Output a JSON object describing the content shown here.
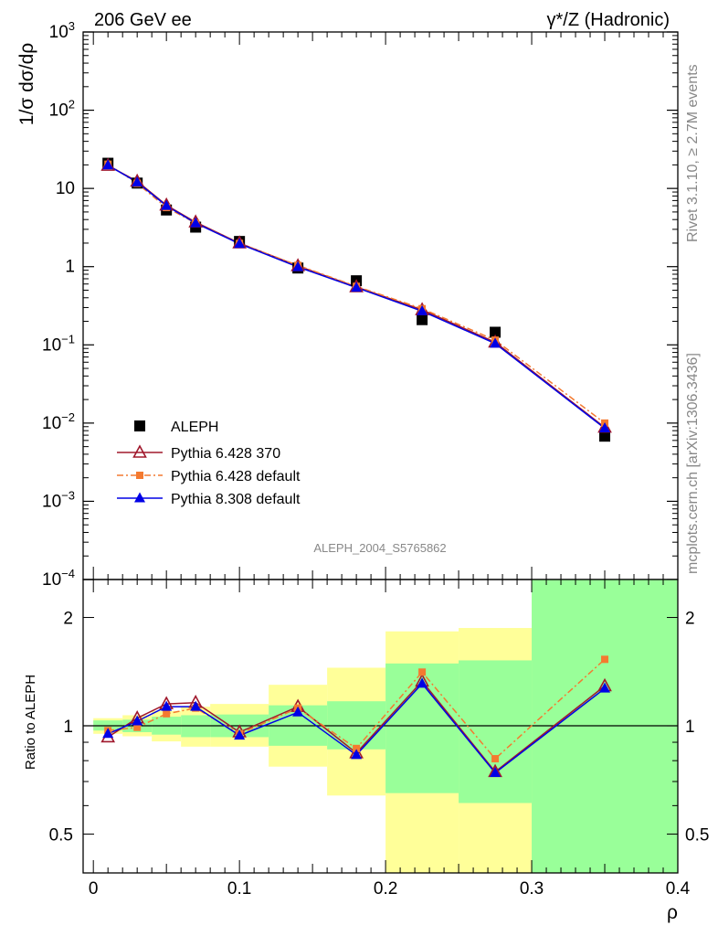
{
  "header": {
    "left": "206 GeV ee",
    "right": "γ*/Z (Hadronic)"
  },
  "side_labels": {
    "rivet": "Rivet 3.1.10, ≥ 2.7M events",
    "mcplots": "mcplots.cern.ch [arXiv:1306.3436]"
  },
  "watermark": "ALEPH_2004_S5765862",
  "colors": {
    "data": "#000000",
    "py6_370": "#a0182c",
    "py6_default": "#f47a30",
    "py8_default": "#0000e6",
    "band_inner": "#99ff99",
    "band_outer": "#ffff99"
  },
  "chart_data": [
    {
      "type": "scatter",
      "panel": "main",
      "yscale": "log",
      "xlim": [
        -0.007,
        0.4
      ],
      "ylim": [
        0.0001,
        1000
      ],
      "ylabel": "1/σ  dσ/dρ",
      "yticks": [
        {
          "value": 1000,
          "base": "10",
          "exp": "3"
        },
        {
          "value": 100,
          "base": "10",
          "exp": "2"
        },
        {
          "value": 10,
          "base": "10",
          "exp": ""
        },
        {
          "value": 1,
          "base": "1",
          "exp": ""
        },
        {
          "value": 0.1,
          "base": "10",
          "exp": "−1"
        },
        {
          "value": 0.01,
          "base": "10",
          "exp": "−2"
        },
        {
          "value": 0.001,
          "base": "10",
          "exp": "−3"
        },
        {
          "value": 0.0001,
          "base": "10",
          "exp": "−4"
        }
      ],
      "x": [
        0.01,
        0.03,
        0.05,
        0.07,
        0.1,
        0.14,
        0.18,
        0.225,
        0.275,
        0.35
      ],
      "series": [
        {
          "name": "ALEPH",
          "style": "data",
          "values": [
            21.0,
            11.7,
            5.3,
            3.2,
            2.1,
            0.96,
            0.66,
            0.21,
            0.145,
            0.0068
          ]
        },
        {
          "name": "Pythia 6.428 370",
          "style": "py6_370",
          "values": [
            19.6,
            12.3,
            6.1,
            3.7,
            2.0,
            1.02,
            0.55,
            0.28,
            0.108,
            0.0088
          ]
        },
        {
          "name": "Pythia 6.428 default",
          "style": "py6_default",
          "values": [
            20.4,
            11.6,
            5.7,
            3.6,
            1.98,
            1.04,
            0.56,
            0.29,
            0.115,
            0.01
          ]
        },
        {
          "name": "Pythia 8.308 default",
          "style": "py8_default",
          "values": [
            19.8,
            12.0,
            6.0,
            3.6,
            1.96,
            0.99,
            0.54,
            0.27,
            0.104,
            0.0086
          ]
        }
      ]
    },
    {
      "type": "line",
      "panel": "ratio",
      "yscale": "log",
      "xlim": [
        -0.007,
        0.4
      ],
      "ylim": [
        0.39,
        2.55
      ],
      "ylabel": "Ratio to ALEPH",
      "xlabel": "ρ",
      "yticks": [
        "0.5",
        "1",
        "2"
      ],
      "xticks": [
        "0",
        "0.1",
        "0.2",
        "0.3",
        "0.4"
      ],
      "bins": [
        [
          0.0,
          0.02
        ],
        [
          0.02,
          0.04
        ],
        [
          0.04,
          0.06
        ],
        [
          0.06,
          0.08
        ],
        [
          0.08,
          0.12
        ],
        [
          0.12,
          0.16
        ],
        [
          0.16,
          0.2
        ],
        [
          0.2,
          0.25
        ],
        [
          0.25,
          0.3
        ],
        [
          0.3,
          0.4
        ]
      ],
      "band_inner": [
        [
          0.97,
          1.035
        ],
        [
          0.96,
          1.04
        ],
        [
          0.945,
          1.06
        ],
        [
          0.93,
          1.07
        ],
        [
          0.93,
          1.075
        ],
        [
          0.88,
          1.14
        ],
        [
          0.86,
          1.17
        ],
        [
          0.65,
          1.49
        ],
        [
          0.61,
          1.52
        ],
        [
          0.39,
          2.55
        ]
      ],
      "band_outer": [
        [
          0.95,
          1.05
        ],
        [
          0.935,
          1.07
        ],
        [
          0.905,
          1.1
        ],
        [
          0.875,
          1.13
        ],
        [
          0.875,
          1.15
        ],
        [
          0.77,
          1.3
        ],
        [
          0.64,
          1.45
        ],
        [
          0.39,
          1.83
        ],
        [
          0.39,
          1.87
        ],
        [
          0.39,
          2.55
        ]
      ],
      "reference": 1,
      "x": [
        0.01,
        0.03,
        0.05,
        0.07,
        0.1,
        0.14,
        0.18,
        0.225,
        0.275,
        0.35
      ],
      "series": [
        {
          "name": "Pythia 6.428 370",
          "style": "py6_370",
          "values": [
            0.93,
            1.05,
            1.15,
            1.16,
            0.96,
            1.13,
            0.84,
            1.33,
            0.745,
            1.29
          ]
        },
        {
          "name": "Pythia 6.428 default",
          "style": "py6_default",
          "values": [
            0.97,
            0.99,
            1.08,
            1.12,
            0.95,
            1.12,
            0.865,
            1.41,
            0.81,
            1.53
          ]
        },
        {
          "name": "Pythia 8.308 default",
          "style": "py8_default",
          "values": [
            0.95,
            1.03,
            1.13,
            1.13,
            0.94,
            1.09,
            0.83,
            1.31,
            0.74,
            1.27
          ]
        }
      ]
    }
  ]
}
